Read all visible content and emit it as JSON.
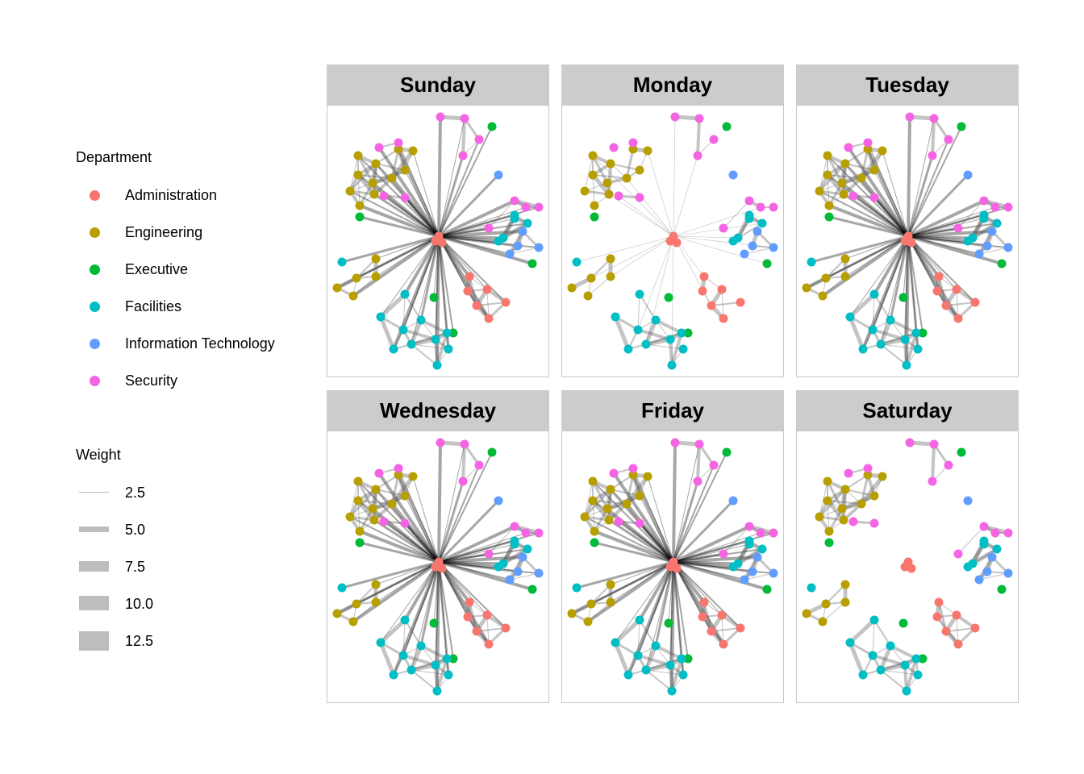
{
  "legend": {
    "department_title": "Department",
    "departments": [
      {
        "name": "Administration",
        "color": "#F8766D"
      },
      {
        "name": "Engineering",
        "color": "#B79F00"
      },
      {
        "name": "Executive",
        "color": "#00BA38"
      },
      {
        "name": "Facilities",
        "color": "#00BFC4"
      },
      {
        "name": "Information Technology",
        "color": "#619CFF"
      },
      {
        "name": "Security",
        "color": "#F564E3"
      }
    ],
    "weight_title": "Weight",
    "weights": [
      "2.5",
      "5.0",
      "7.5",
      "10.0",
      "12.5"
    ]
  },
  "panels": [
    {
      "title": "Sunday",
      "hub": true,
      "density": "high"
    },
    {
      "title": "Monday",
      "hub": true,
      "density": "low"
    },
    {
      "title": "Tuesday",
      "hub": true,
      "density": "high"
    },
    {
      "title": "Wednesday",
      "hub": true,
      "density": "high"
    },
    {
      "title": "Friday",
      "hub": true,
      "density": "high"
    },
    {
      "title": "Saturday",
      "hub": false,
      "density": "low"
    }
  ]
}
